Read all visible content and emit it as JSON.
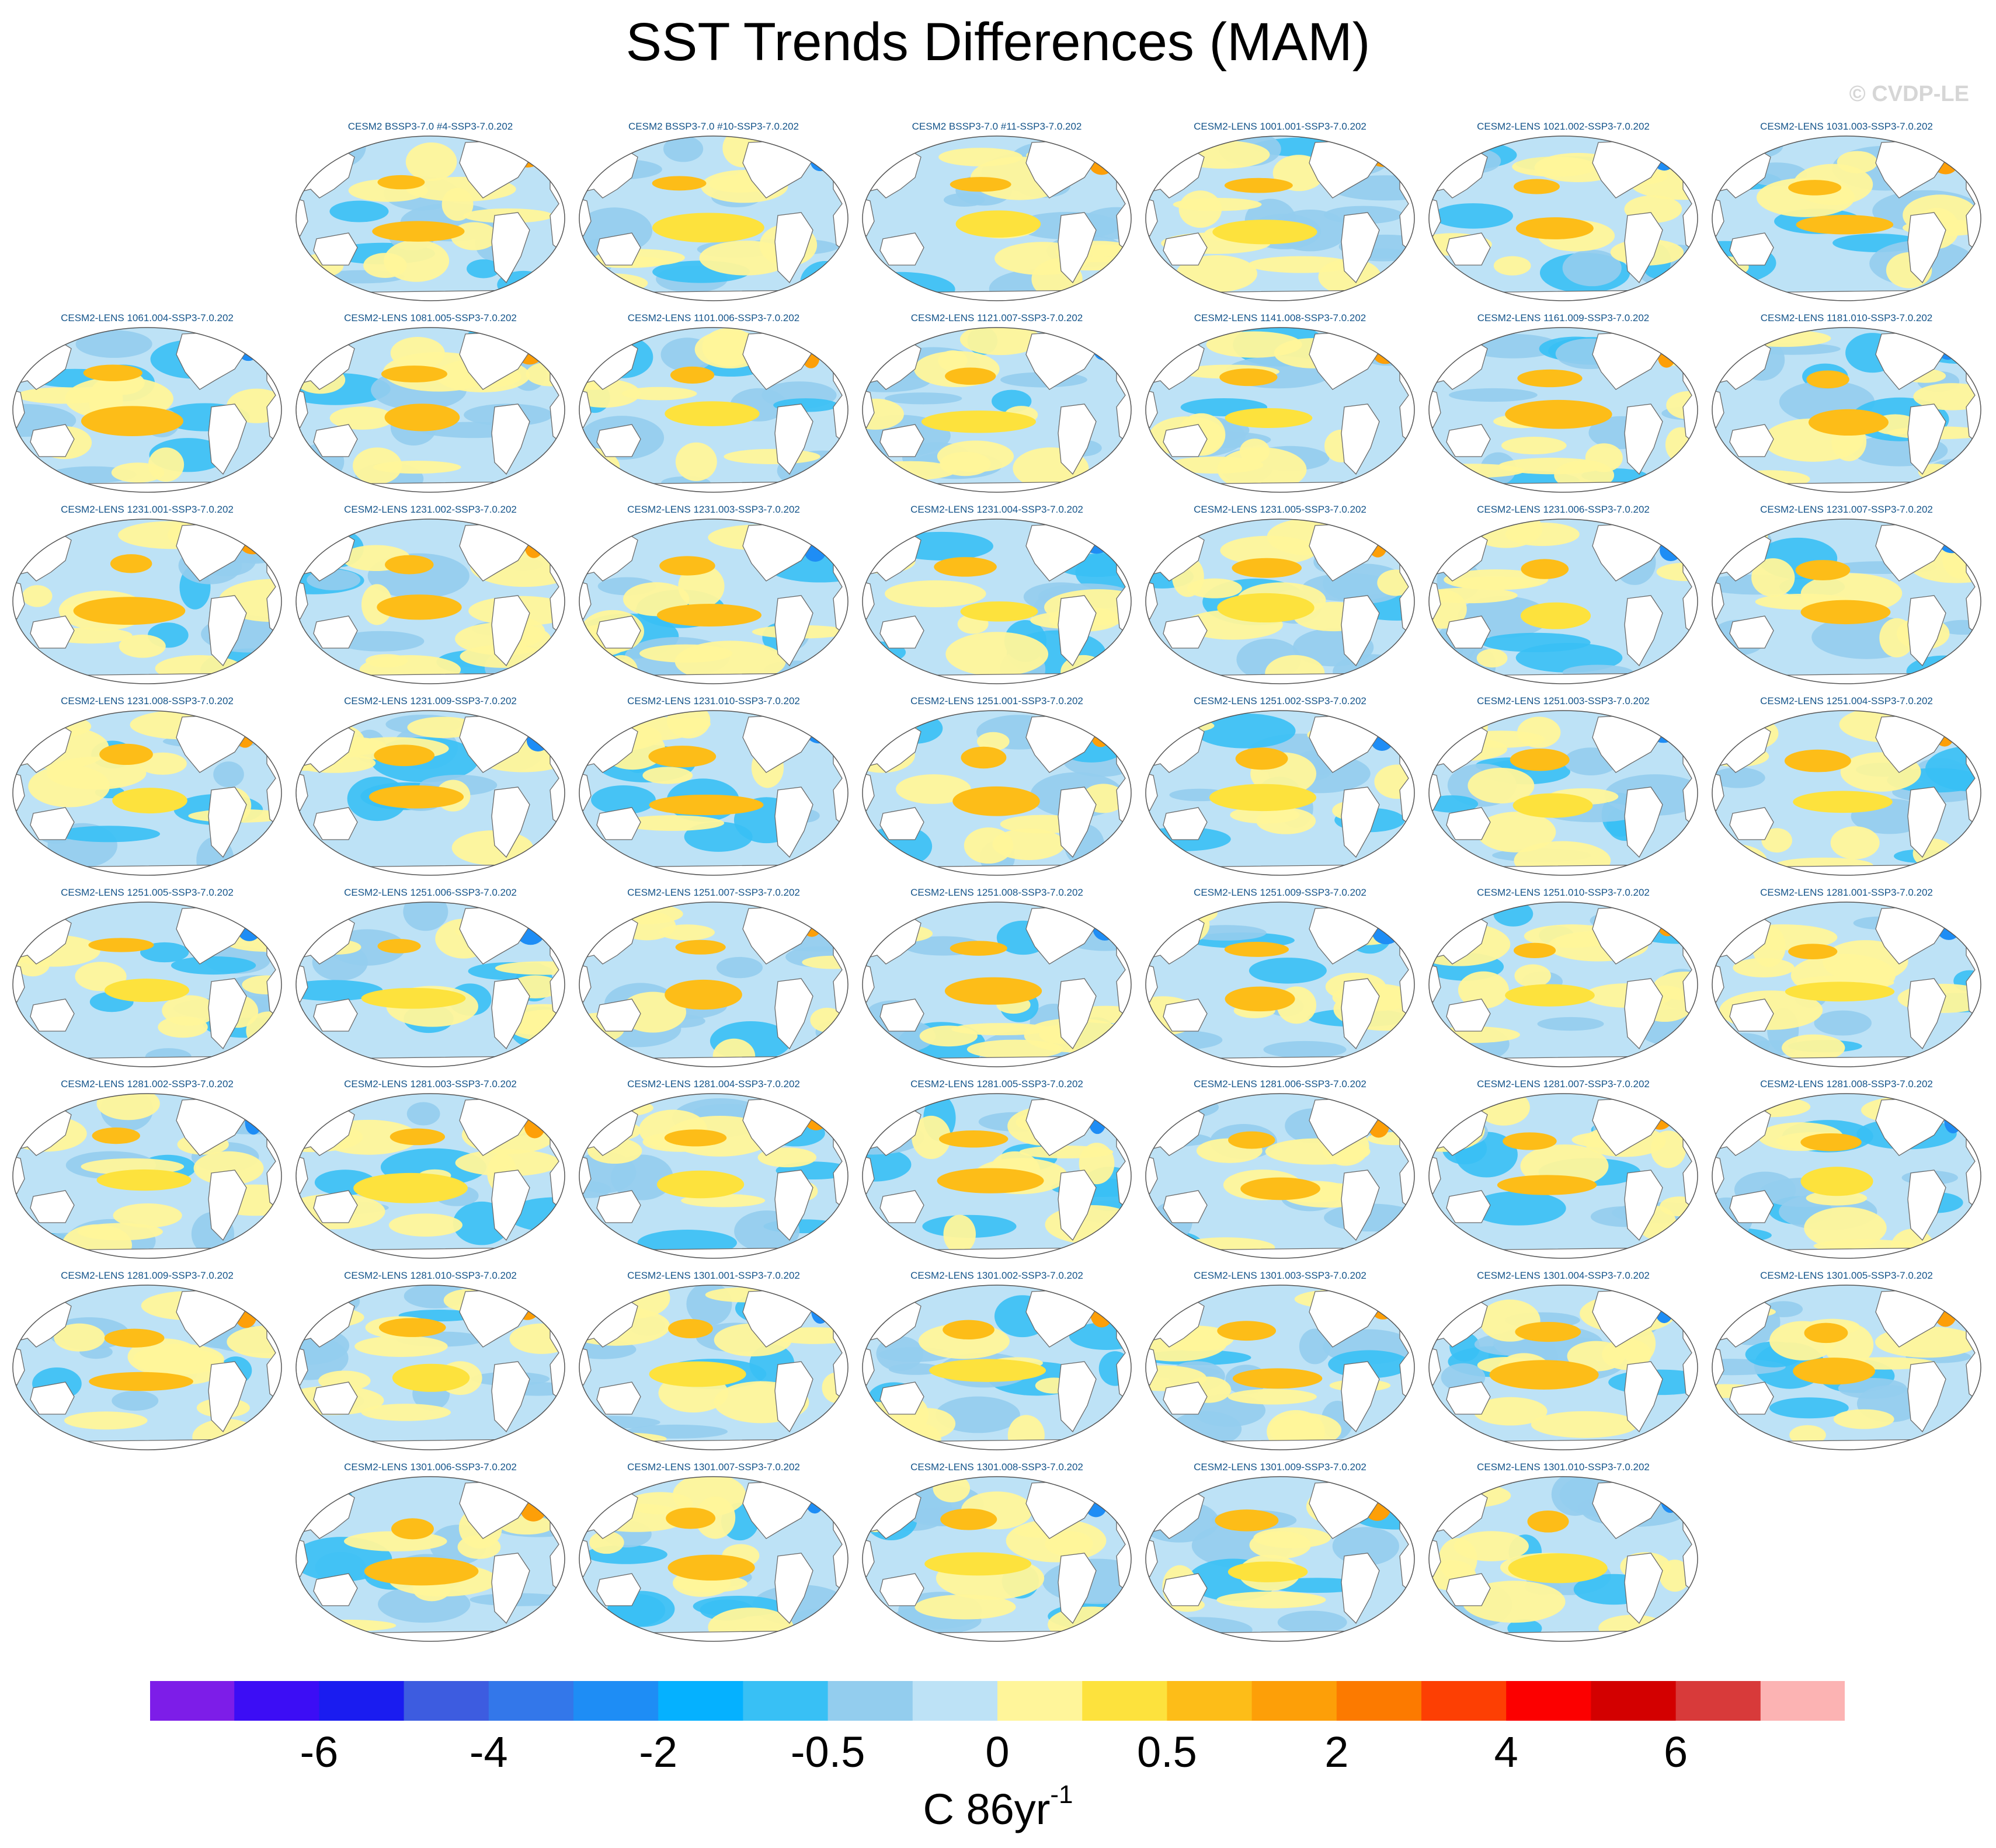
{
  "title": "SST Trends Differences (MAM)",
  "watermark": "© CVDP-LE",
  "units": {
    "base": "C 86yr",
    "exponent": "-1"
  },
  "colorbar": {
    "colors": [
      "#7d1de8",
      "#3c0df5",
      "#1a1cf0",
      "#3d5ce0",
      "#3377ea",
      "#1e8df5",
      "#05b1ff",
      "#38c0f5",
      "#93cdee",
      "#bde2f6",
      "#fff59a",
      "#fde23d",
      "#fdbd18",
      "#fd9f08",
      "#fc7a00",
      "#fd3f03",
      "#fc0000",
      "#d30000",
      "#d83a3a",
      "#fcb3b3"
    ],
    "tick_labels": [
      {
        "label": "-6",
        "index": 2
      },
      {
        "label": "-4",
        "index": 4
      },
      {
        "label": "-2",
        "index": 6
      },
      {
        "label": "-0.5",
        "index": 8
      },
      {
        "label": "0",
        "index": 10
      },
      {
        "label": "0.5",
        "index": 12
      },
      {
        "label": "2",
        "index": 14
      },
      {
        "label": "4",
        "index": 16
      },
      {
        "label": "6",
        "index": 18
      }
    ]
  },
  "panel_rows": [
    {
      "offset": 1,
      "panels": [
        "CESM2 BSSP3-7.0 #4-SSP3-7.0.202",
        "CESM2 BSSP3-7.0 #10-SSP3-7.0.202",
        "CESM2 BSSP3-7.0 #11-SSP3-7.0.202",
        "CESM2-LENS 1001.001-SSP3-7.0.202",
        "CESM2-LENS 1021.002-SSP3-7.0.202",
        "CESM2-LENS 1031.003-SSP3-7.0.202"
      ]
    },
    {
      "offset": 0,
      "panels": [
        "CESM2-LENS 1061.004-SSP3-7.0.202",
        "CESM2-LENS 1081.005-SSP3-7.0.202",
        "CESM2-LENS 1101.006-SSP3-7.0.202",
        "CESM2-LENS 1121.007-SSP3-7.0.202",
        "CESM2-LENS 1141.008-SSP3-7.0.202",
        "CESM2-LENS 1161.009-SSP3-7.0.202",
        "CESM2-LENS 1181.010-SSP3-7.0.202"
      ]
    },
    {
      "offset": 0,
      "panels": [
        "CESM2-LENS 1231.001-SSP3-7.0.202",
        "CESM2-LENS 1231.002-SSP3-7.0.202",
        "CESM2-LENS 1231.003-SSP3-7.0.202",
        "CESM2-LENS 1231.004-SSP3-7.0.202",
        "CESM2-LENS 1231.005-SSP3-7.0.202",
        "CESM2-LENS 1231.006-SSP3-7.0.202",
        "CESM2-LENS 1231.007-SSP3-7.0.202"
      ]
    },
    {
      "offset": 0,
      "panels": [
        "CESM2-LENS 1231.008-SSP3-7.0.202",
        "CESM2-LENS 1231.009-SSP3-7.0.202",
        "CESM2-LENS 1231.010-SSP3-7.0.202",
        "CESM2-LENS 1251.001-SSP3-7.0.202",
        "CESM2-LENS 1251.002-SSP3-7.0.202",
        "CESM2-LENS 1251.003-SSP3-7.0.202",
        "CESM2-LENS 1251.004-SSP3-7.0.202"
      ]
    },
    {
      "offset": 0,
      "panels": [
        "CESM2-LENS 1251.005-SSP3-7.0.202",
        "CESM2-LENS 1251.006-SSP3-7.0.202",
        "CESM2-LENS 1251.007-SSP3-7.0.202",
        "CESM2-LENS 1251.008-SSP3-7.0.202",
        "CESM2-LENS 1251.009-SSP3-7.0.202",
        "CESM2-LENS 1251.010-SSP3-7.0.202",
        "CESM2-LENS 1281.001-SSP3-7.0.202"
      ]
    },
    {
      "offset": 0,
      "panels": [
        "CESM2-LENS 1281.002-SSP3-7.0.202",
        "CESM2-LENS 1281.003-SSP3-7.0.202",
        "CESM2-LENS 1281.004-SSP3-7.0.202",
        "CESM2-LENS 1281.005-SSP3-7.0.202",
        "CESM2-LENS 1281.006-SSP3-7.0.202",
        "CESM2-LENS 1281.007-SSP3-7.0.202",
        "CESM2-LENS 1281.008-SSP3-7.0.202"
      ]
    },
    {
      "offset": 0,
      "panels": [
        "CESM2-LENS 1281.009-SSP3-7.0.202",
        "CESM2-LENS 1281.010-SSP3-7.0.202",
        "CESM2-LENS 1301.001-SSP3-7.0.202",
        "CESM2-LENS 1301.002-SSP3-7.0.202",
        "CESM2-LENS 1301.003-SSP3-7.0.202",
        "CESM2-LENS 1301.004-SSP3-7.0.202",
        "CESM2-LENS 1301.005-SSP3-7.0.202"
      ]
    },
    {
      "offset": 1,
      "panels": [
        "CESM2-LENS 1301.006-SSP3-7.0.202",
        "CESM2-LENS 1301.007-SSP3-7.0.202",
        "CESM2-LENS 1301.008-SSP3-7.0.202",
        "CESM2-LENS 1301.009-SSP3-7.0.202",
        "CESM2-LENS 1301.010-SSP3-7.0.202"
      ]
    }
  ]
}
